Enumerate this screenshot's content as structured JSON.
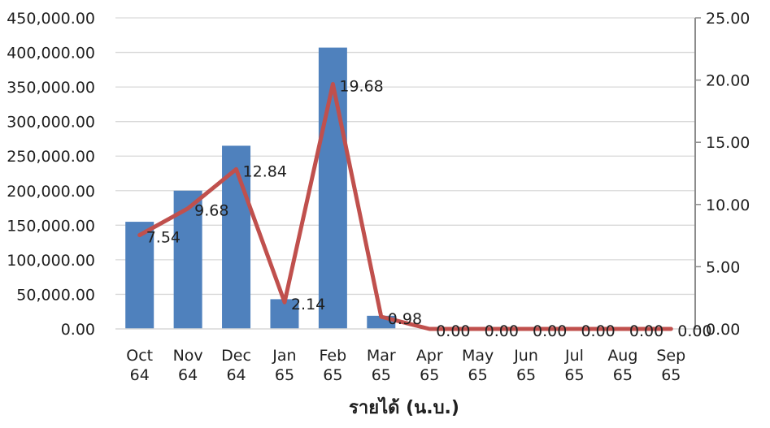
{
  "chart_data": {
    "type": "bar",
    "title": "",
    "xlabel": "รายได้ (น.บ.)",
    "categories": [
      [
        "Oct",
        "64"
      ],
      [
        "Nov",
        "64"
      ],
      [
        "Dec",
        "64"
      ],
      [
        "Jan",
        "65"
      ],
      [
        "Feb",
        "65"
      ],
      [
        "Mar",
        "65"
      ],
      [
        "Apr",
        "65"
      ],
      [
        "May",
        "65"
      ],
      [
        "Jun",
        "65"
      ],
      [
        "Jul",
        "65"
      ],
      [
        "Aug",
        "65"
      ],
      [
        "Sep",
        "65"
      ]
    ],
    "series": [
      {
        "type": "bar",
        "axis": "left",
        "color": "#4f81bd",
        "values": [
          155000,
          200000,
          265000,
          43000,
          407000,
          19000,
          0,
          0,
          0,
          0,
          0,
          0
        ]
      },
      {
        "type": "line",
        "axis": "right",
        "color": "#c0504d",
        "values": [
          7.54,
          9.68,
          12.84,
          2.14,
          19.68,
          0.98,
          0.0,
          0.0,
          0.0,
          0.0,
          0.0,
          0.0
        ],
        "data_labels": [
          "7.54",
          "9.68",
          "12.84",
          "2.14",
          "19.68",
          "0.98",
          "0.00",
          "0.00",
          "0.00",
          "0.00",
          "0.00",
          "0.00"
        ]
      }
    ],
    "y_left": {
      "ylim": [
        0,
        450000
      ],
      "ticks": [
        "0.00",
        "50,000.00",
        "100,000.00",
        "150,000.00",
        "200,000.00",
        "250,000.00",
        "300,000.00",
        "350,000.00",
        "400,000.00",
        "450,000.00"
      ]
    },
    "y_right": {
      "ylim": [
        0,
        25
      ],
      "ticks": [
        "0.00",
        "5.00",
        "10.00",
        "15.00",
        "20.00",
        "25.00"
      ]
    },
    "grid": true,
    "gridline_color": "#d9d9d9",
    "axis_color": "#8c8c8c"
  }
}
